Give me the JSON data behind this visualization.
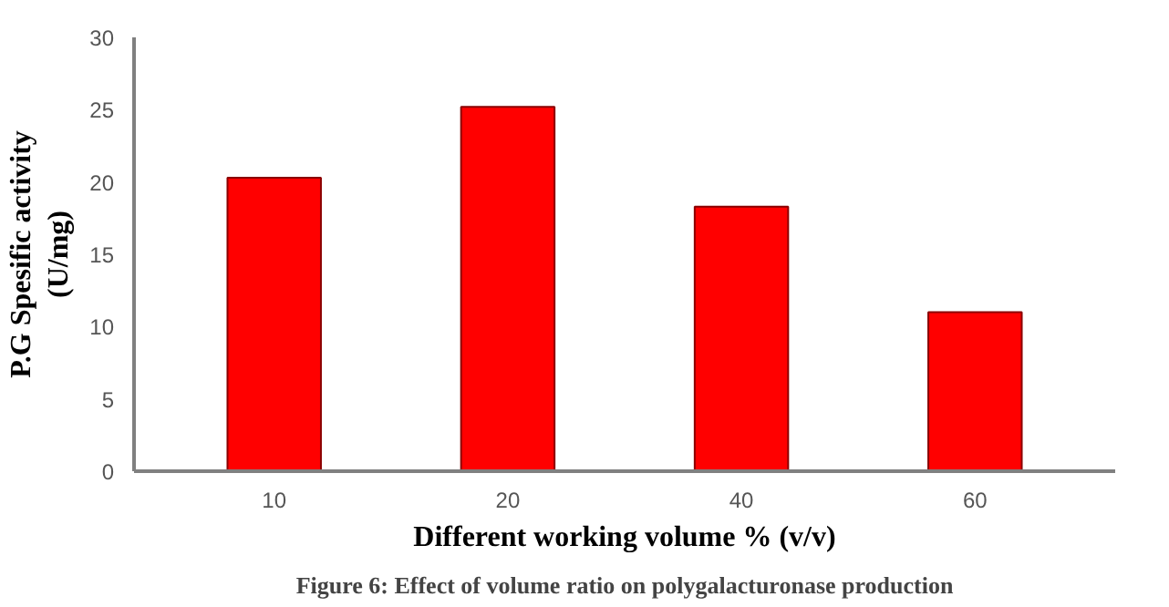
{
  "chart_data": {
    "type": "bar",
    "xlabel": "Different working volume % (v/v)",
    "ylabel": "P.G Spesific activity\n(U/mg)",
    "categories": [
      "10",
      "20",
      "40",
      "60"
    ],
    "values": [
      20.3,
      25.2,
      18.3,
      11.0
    ],
    "color": "#ff0000",
    "ylim": [
      0,
      30
    ],
    "yticks": [
      0,
      5,
      10,
      15,
      20,
      25,
      30
    ],
    "grid": false,
    "annotations": [
      "Figure 6: Effect of volume ratio on polygalacturonase production"
    ]
  }
}
